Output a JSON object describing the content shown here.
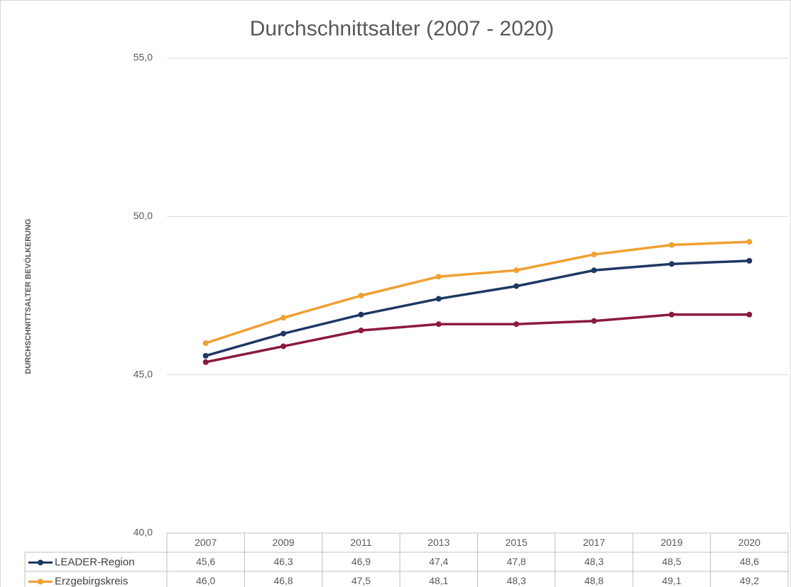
{
  "chart_data": {
    "type": "line",
    "title": "Durchschnittsalter (2007 - 2020)",
    "y_label": "DURCHSCHNITTSALTER BEVÖLKERUNG",
    "categories": [
      "2007",
      "2009",
      "2011",
      "2013",
      "2015",
      "2017",
      "2019",
      "2020"
    ],
    "series": [
      {
        "name": "LEADER-Region",
        "color": "#1f3864",
        "values": [
          45.6,
          46.3,
          46.9,
          47.4,
          47.8,
          48.3,
          48.5,
          48.6
        ],
        "value_labels": [
          "45,6",
          "46,3",
          "46,9",
          "47,4",
          "47,8",
          "48,3",
          "48,5",
          "48,6"
        ]
      },
      {
        "name": "Erzgebirgskreis",
        "color": "#f0a030",
        "values": [
          46.0,
          46.8,
          47.5,
          48.1,
          48.3,
          48.8,
          49.1,
          49.2
        ],
        "value_labels": [
          "46,0",
          "46,8",
          "47,5",
          "48,1",
          "48,3",
          "48,8",
          "49,1",
          "49,2"
        ]
      },
      {
        "color": "#8b1a3c",
        "values": [
          45.4,
          45.9,
          46.4,
          46.6,
          46.6,
          46.7,
          46.9,
          46.9
        ]
      }
    ],
    "ylim": [
      40,
      55
    ],
    "yticks": [
      {
        "value": 40,
        "label": "40,0"
      },
      {
        "value": 45,
        "label": "45,0"
      },
      {
        "value": 50,
        "label": "50,0"
      },
      {
        "value": 55,
        "label": "55,0"
      }
    ],
    "grid": true
  }
}
